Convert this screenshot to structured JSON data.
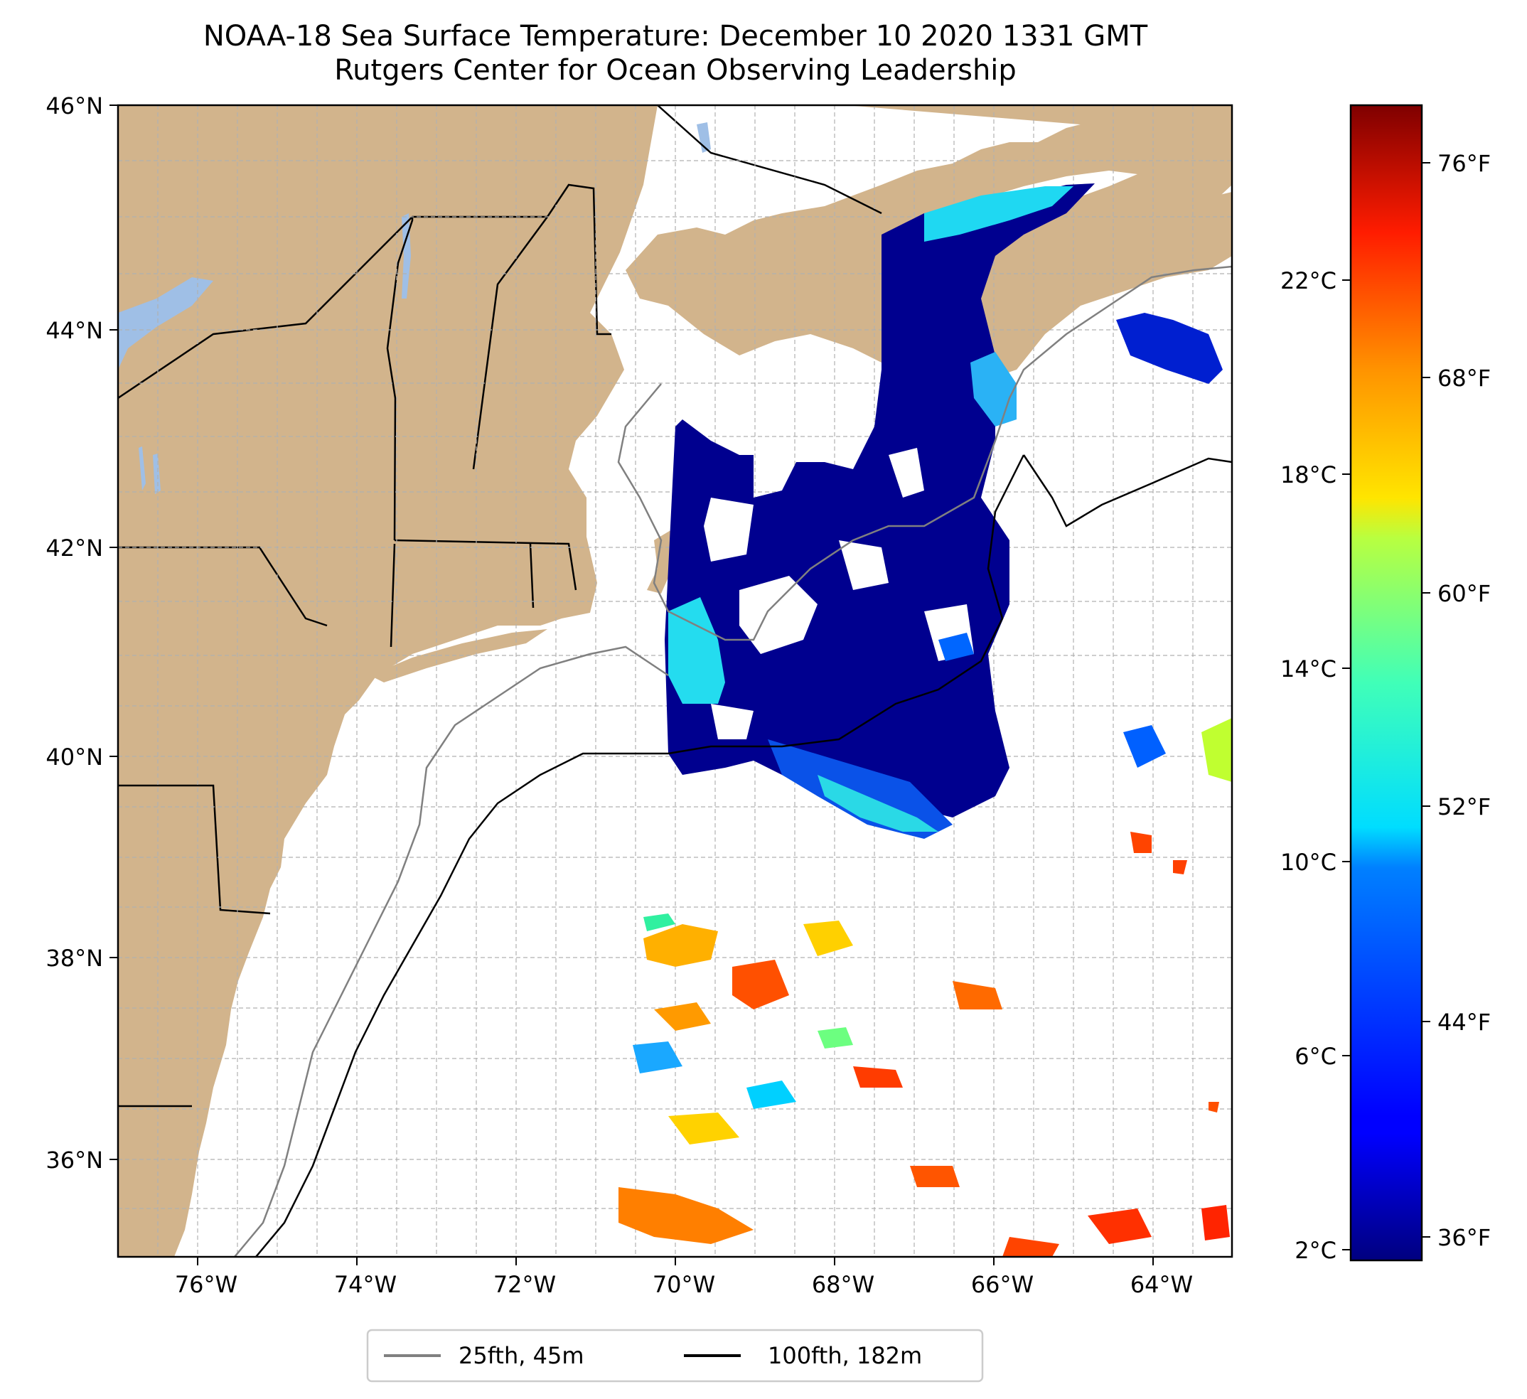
{
  "title": "NOAA-18 Sea Surface Temperature: December 10 2020 1331 GMT",
  "subtitle": "Rutgers Center for Ocean Observing Leadership",
  "map": {
    "extent": {
      "lon_min": -77,
      "lon_max": -63,
      "lat_min": 35.1,
      "lat_max": 46
    },
    "lat_ticks": [
      {
        "value": 46,
        "label": "46°N"
      },
      {
        "value": 44,
        "label": "44°N"
      },
      {
        "value": 42,
        "label": "42°N"
      },
      {
        "value": 40,
        "label": "40°N"
      },
      {
        "value": 38,
        "label": "38°N"
      },
      {
        "value": 36,
        "label": "36°N"
      }
    ],
    "lon_ticks": [
      {
        "value": -76,
        "label": "76°W"
      },
      {
        "value": -74,
        "label": "74°W"
      },
      {
        "value": -72,
        "label": "72°W"
      },
      {
        "value": -70,
        "label": "70°W"
      },
      {
        "value": -68,
        "label": "68°W"
      },
      {
        "value": -66,
        "label": "66°W"
      },
      {
        "value": -64,
        "label": "64°W"
      }
    ],
    "colors": {
      "land": "#d2b48c",
      "lakes": "#9fbfe6",
      "grid": "#b0b0b0",
      "isobath_25": "#808080",
      "isobath_100": "#000000"
    }
  },
  "colorbar": {
    "colormap": "jet",
    "celsius_range": [
      2,
      26
    ],
    "celsius_ticks": [
      {
        "value": 2,
        "label": "2°C"
      },
      {
        "value": 6,
        "label": "6°C"
      },
      {
        "value": 10,
        "label": "10°C"
      },
      {
        "value": 14,
        "label": "14°C"
      },
      {
        "value": 18,
        "label": "18°C"
      },
      {
        "value": 22,
        "label": "22°C"
      }
    ],
    "fahrenheit_ticks": [
      {
        "value": 36,
        "label": "36°F"
      },
      {
        "value": 44,
        "label": "44°F"
      },
      {
        "value": 52,
        "label": "52°F"
      },
      {
        "value": 60,
        "label": "60°F"
      },
      {
        "value": 68,
        "label": "68°F"
      },
      {
        "value": 76,
        "label": "76°F"
      }
    ]
  },
  "legend": {
    "items": [
      {
        "label": "25fth, 45m",
        "color": "#808080"
      },
      {
        "label": "100fth, 182m",
        "color": "#000000"
      }
    ]
  }
}
